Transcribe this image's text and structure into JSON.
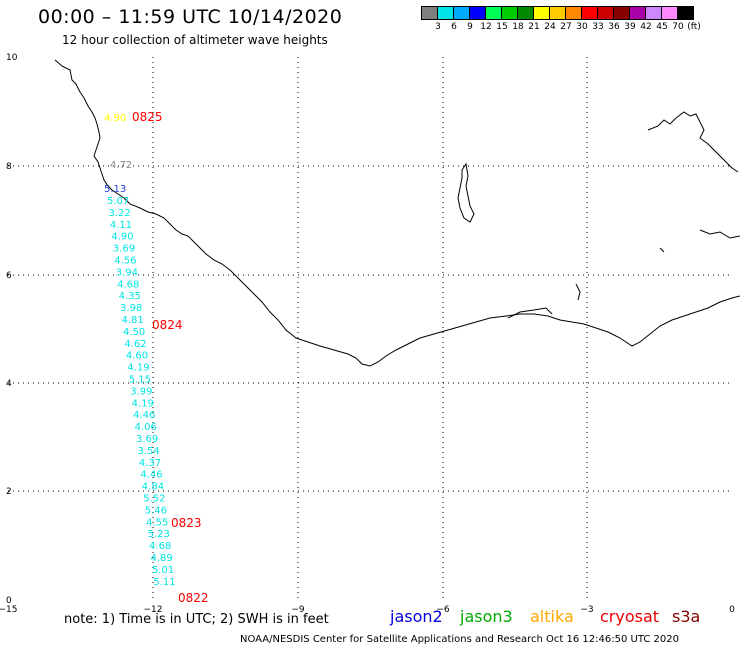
{
  "header": {
    "title": "00:00 – 11:59 UTC 10/14/2020",
    "subtitle": "12 hour collection of altimeter wave heights"
  },
  "colorbar": {
    "colors": [
      "#7f7f7f",
      "#00e5e5",
      "#00aaff",
      "#0000ff",
      "#00ff55",
      "#00cc00",
      "#008800",
      "#ffff00",
      "#ffcc00",
      "#ff8800",
      "#ff0000",
      "#cc0000",
      "#880000",
      "#aa00aa",
      "#cc88ff",
      "#ff88ff",
      "#000000"
    ],
    "labels": [
      "3",
      "6",
      "9",
      "12",
      "15",
      "18",
      "21",
      "24",
      "27",
      "30",
      "33",
      "36",
      "39",
      "42",
      "45",
      "70",
      "(ft)"
    ]
  },
  "axes": {
    "x_ticks": [
      "−15",
      "−12",
      "−9",
      "−6",
      "−3",
      "0"
    ],
    "y_ticks": [
      "0",
      "2",
      "4",
      "6",
      "8",
      "10"
    ]
  },
  "track": {
    "values": [
      "4.90",
      "4.72",
      "5.13",
      "5.07",
      "3.22",
      "4.11",
      "4.90",
      "3.69",
      "4.56",
      "3.94",
      "4.68",
      "4.35",
      "3.98",
      "4.81",
      "4.50",
      "4.62",
      "4.60",
      "4.19",
      "5.15",
      "3.99",
      "4.19",
      "4.46",
      "4.06",
      "3.69",
      "3.54",
      "4.37",
      "4.46",
      "4.84",
      "5.52",
      "5.46",
      "4.55",
      "5.23",
      "4.68",
      "4.89",
      "5.01",
      "5.11"
    ],
    "colors": {
      "yellow": "#ffff00",
      "gray": "#888888",
      "blue": "#2244dd",
      "cyan": "#00e5e5"
    },
    "times": [
      "0825",
      "0824",
      "0823",
      "0822"
    ],
    "time_color": "#ff0000"
  },
  "footer": {
    "note": "note:  1) Time is in UTC;  2) SWH is in feet",
    "legend": [
      {
        "label": "jason2",
        "color": "#0000dd"
      },
      {
        "label": "jason3",
        "color": "#00aa00"
      },
      {
        "label": "altika",
        "color": "#ffaa00"
      },
      {
        "label": "cryosat",
        "color": "#ee0000"
      },
      {
        "label": "s3a",
        "color": "#880000"
      }
    ],
    "credit": "NOAA/NESDIS Center for Satellite Applications and Research    Oct 16 12:46:50 UTC 2020"
  }
}
